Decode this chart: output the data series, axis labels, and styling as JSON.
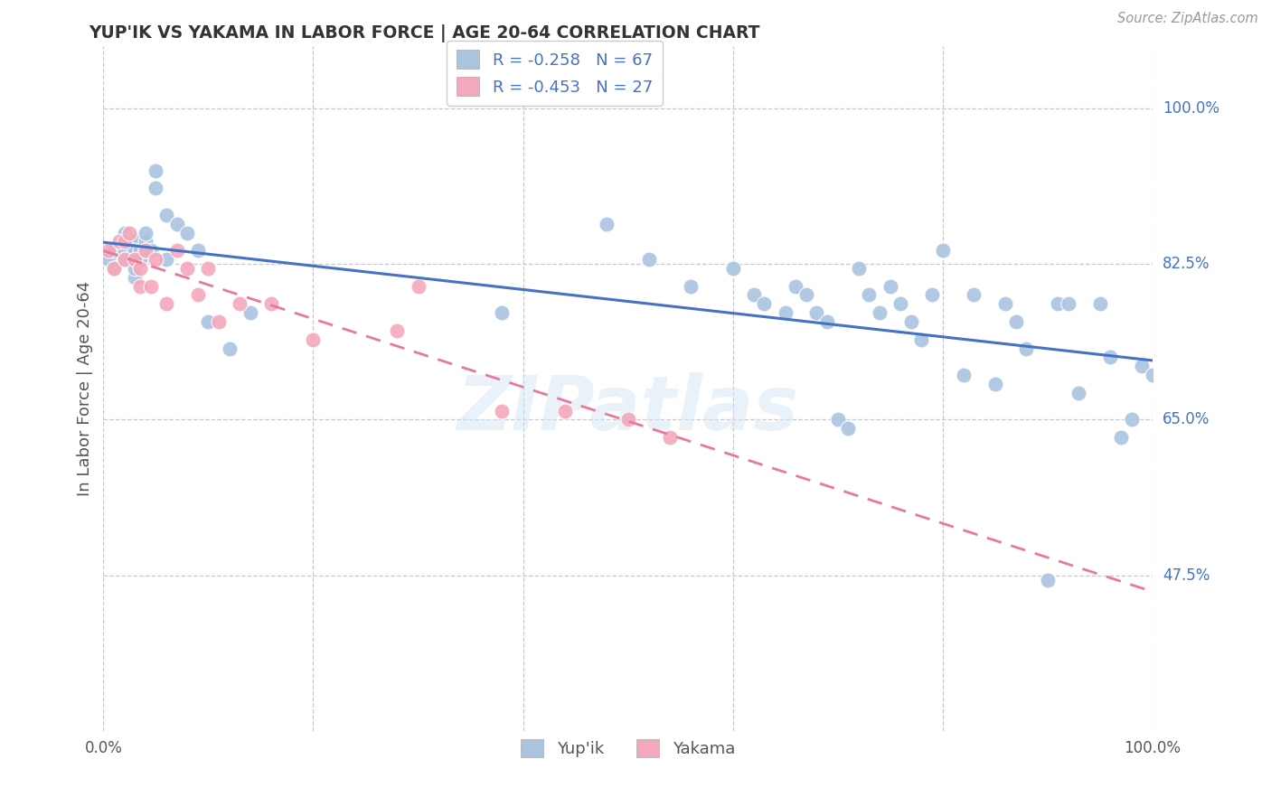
{
  "title": "YUP'IK VS YAKAMA IN LABOR FORCE | AGE 20-64 CORRELATION CHART",
  "source": "Source: ZipAtlas.com",
  "ylabel": "In Labor Force | Age 20-64",
  "xlim": [
    0.0,
    1.0
  ],
  "ylim": [
    0.3,
    1.07
  ],
  "yticks": [
    0.475,
    0.65,
    0.825,
    1.0
  ],
  "ytick_labels": [
    "47.5%",
    "65.0%",
    "82.5%",
    "100.0%"
  ],
  "xtick_labels": [
    "0.0%",
    "100.0%"
  ],
  "xtick_pos": [
    0.0,
    1.0
  ],
  "background_color": "#ffffff",
  "grid_color": "#c8c8c8",
  "watermark": "ZIPatlas",
  "yupik_color": "#aac4e0",
  "yakama_color": "#f4a8bc",
  "yupik_line_color": "#4472c4",
  "yakama_line_color": "#e8799a",
  "legend_r_yupik": "R = -0.258",
  "legend_n_yupik": "N = 67",
  "legend_r_yakama": "R = -0.453",
  "legend_n_yakama": "N = 27",
  "yupik_x": [
    0.005,
    0.01,
    0.01,
    0.02,
    0.02,
    0.02,
    0.025,
    0.025,
    0.03,
    0.03,
    0.03,
    0.03,
    0.035,
    0.035,
    0.04,
    0.04,
    0.04,
    0.045,
    0.05,
    0.05,
    0.06,
    0.06,
    0.07,
    0.08,
    0.09,
    0.1,
    0.12,
    0.14,
    0.38,
    0.48,
    0.52,
    0.56,
    0.6,
    0.62,
    0.63,
    0.65,
    0.66,
    0.67,
    0.68,
    0.69,
    0.7,
    0.71,
    0.72,
    0.73,
    0.74,
    0.75,
    0.76,
    0.77,
    0.78,
    0.79,
    0.8,
    0.82,
    0.83,
    0.85,
    0.86,
    0.87,
    0.88,
    0.9,
    0.91,
    0.92,
    0.93,
    0.95,
    0.96,
    0.97,
    0.98,
    0.99,
    1.0
  ],
  "yupik_y": [
    0.83,
    0.84,
    0.82,
    0.84,
    0.83,
    0.86,
    0.83,
    0.85,
    0.81,
    0.85,
    0.84,
    0.82,
    0.84,
    0.83,
    0.85,
    0.84,
    0.86,
    0.84,
    0.91,
    0.93,
    0.83,
    0.88,
    0.87,
    0.86,
    0.84,
    0.76,
    0.73,
    0.77,
    0.77,
    0.87,
    0.83,
    0.8,
    0.82,
    0.79,
    0.78,
    0.77,
    0.8,
    0.79,
    0.77,
    0.76,
    0.65,
    0.64,
    0.82,
    0.79,
    0.77,
    0.8,
    0.78,
    0.76,
    0.74,
    0.79,
    0.84,
    0.7,
    0.79,
    0.69,
    0.78,
    0.76,
    0.73,
    0.47,
    0.78,
    0.78,
    0.68,
    0.78,
    0.72,
    0.63,
    0.65,
    0.71,
    0.7
  ],
  "yakama_x": [
    0.005,
    0.01,
    0.015,
    0.02,
    0.02,
    0.025,
    0.03,
    0.035,
    0.035,
    0.04,
    0.045,
    0.05,
    0.06,
    0.07,
    0.08,
    0.09,
    0.1,
    0.11,
    0.13,
    0.16,
    0.2,
    0.28,
    0.3,
    0.38,
    0.44,
    0.5,
    0.54
  ],
  "yakama_y": [
    0.84,
    0.82,
    0.85,
    0.83,
    0.85,
    0.86,
    0.83,
    0.82,
    0.8,
    0.84,
    0.8,
    0.83,
    0.78,
    0.84,
    0.82,
    0.79,
    0.82,
    0.76,
    0.78,
    0.78,
    0.74,
    0.75,
    0.8,
    0.66,
    0.66,
    0.65,
    0.63
  ]
}
